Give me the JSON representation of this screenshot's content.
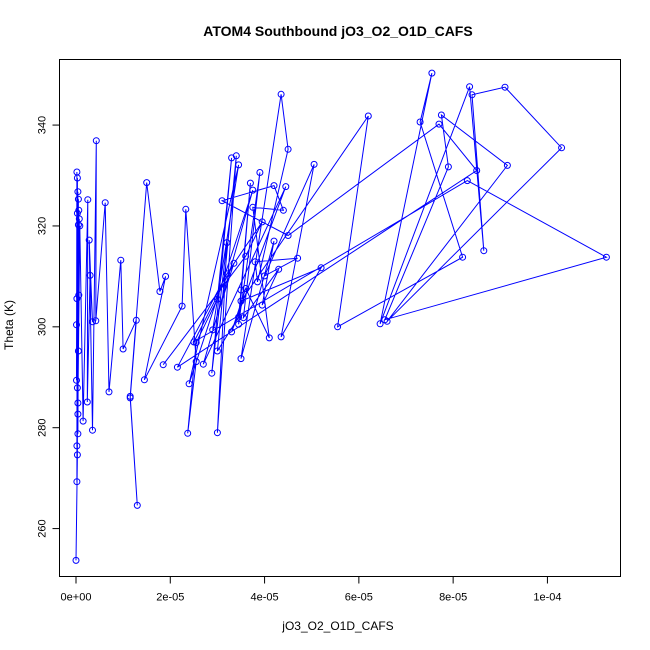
{
  "chart_data": {
    "type": "line",
    "title": "ATOM4 Southbound jO3_O2_O1D_CAFS",
    "xlabel": "jO3_O2_O1D_CAFS",
    "ylabel": "Theta (K)",
    "xlim": [
      -3.5e-06,
      0.0001155
    ],
    "ylim": [
      250.5,
      353.0
    ],
    "x_ticks": [
      0,
      2e-05,
      4e-05,
      6e-05,
      8e-05,
      0.0001
    ],
    "x_tick_labels": [
      "0e+00",
      "2e-05",
      "4e-05",
      "6e-05",
      "8e-05",
      "1e-04"
    ],
    "y_ticks": [
      260,
      280,
      300,
      320,
      340
    ],
    "y_tick_labels": [
      "260",
      "280",
      "300",
      "320",
      "340"
    ],
    "grid": false,
    "legend": false,
    "marker": "open-circle",
    "series": [
      {
        "color": "#0000ff",
        "points": [
          [
            0.0,
            253.7
          ],
          [
            3e-07,
            274.6
          ],
          [
            2e-07,
            330.7
          ],
          [
            1e-07,
            289.4
          ],
          [
            4e-07,
            326.8
          ],
          [
            2e-07,
            269.3
          ],
          [
            3e-07,
            322.5
          ],
          [
            4e-07,
            282.7
          ],
          [
            3e-07,
            329.5
          ],
          [
            2e-07,
            276.4
          ],
          [
            5e-07,
            320.2
          ],
          [
            1e-07,
            300.4
          ],
          [
            6e-07,
            323.1
          ],
          [
            4e-07,
            278.8
          ],
          [
            2e-07,
            305.6
          ],
          [
            5e-07,
            325.3
          ],
          [
            3e-07,
            287.9
          ],
          [
            7e-07,
            321.4
          ],
          [
            5e-07,
            295.2
          ],
          [
            6e-07,
            306.3
          ],
          [
            4e-07,
            284.9
          ],
          [
            8e-07,
            320.0
          ],
          [
            1.5e-06,
            281.3
          ],
          [
            2.5e-06,
            325.2
          ],
          [
            2.4e-06,
            285.1
          ],
          [
            3e-06,
            310.2
          ],
          [
            3.5e-06,
            301.0
          ],
          [
            2.8e-06,
            317.2
          ],
          [
            3.5e-06,
            279.5
          ],
          [
            4.3e-06,
            336.9
          ],
          [
            4.2e-06,
            301.2
          ],
          [
            6.2e-06,
            324.6
          ],
          [
            7e-06,
            287.1
          ],
          [
            9.5e-06,
            313.2
          ],
          [
            1e-05,
            295.6
          ],
          [
            1.28e-05,
            301.3
          ],
          [
            1.15e-05,
            285.9
          ],
          [
            1.3e-05,
            264.6
          ],
          [
            1.15e-05,
            286.2
          ],
          [
            1.5e-05,
            328.6
          ],
          [
            1.78e-05,
            307.0
          ],
          [
            1.9e-05,
            310.0
          ],
          [
            1.45e-05,
            289.5
          ],
          [
            2.25e-05,
            304.1
          ],
          [
            2.33e-05,
            323.3
          ],
          [
            2.55e-05,
            293.1
          ],
          [
            2.37e-05,
            278.9
          ],
          [
            2.55e-05,
            296.9
          ],
          [
            3e-05,
            305.5
          ],
          [
            3.3e-05,
            333.5
          ],
          [
            2.88e-05,
            290.8
          ],
          [
            3.2e-05,
            316.7
          ],
          [
            3e-05,
            279.0
          ],
          [
            3.4e-05,
            333.9
          ],
          [
            3e-05,
            295.2
          ],
          [
            3.45e-05,
            301.9
          ],
          [
            3.5e-05,
            307.3
          ],
          [
            3.7e-05,
            328.5
          ],
          [
            3.45e-05,
            300.5
          ],
          [
            3.9e-05,
            330.6
          ],
          [
            3.55e-05,
            301.8
          ],
          [
            4.3e-05,
            311.4
          ],
          [
            3.95e-05,
            304.3
          ],
          [
            4.2e-05,
            317.0
          ],
          [
            3.5e-05,
            293.7
          ],
          [
            4.35e-05,
            346.1
          ],
          [
            4.5e-05,
            335.2
          ],
          [
            3.85e-05,
            308.9
          ],
          [
            3.8e-05,
            312.9
          ],
          [
            4.7e-05,
            313.6
          ],
          [
            4e-05,
            310.1
          ],
          [
            5.05e-05,
            332.2
          ],
          [
            4.35e-05,
            298.0
          ],
          [
            5.2e-05,
            311.7
          ],
          [
            3.5e-05,
            305.1
          ],
          [
            6.2e-05,
            341.8
          ],
          [
            5.55e-05,
            300.0
          ],
          [
            8.2e-05,
            313.8
          ],
          [
            7.3e-05,
            340.6
          ],
          [
            7.55e-05,
            350.3
          ],
          [
            6.45e-05,
            300.6
          ],
          [
            8.35e-05,
            347.6
          ],
          [
            8.65e-05,
            315.1
          ],
          [
            8.4e-05,
            346.0
          ],
          [
            9.1e-05,
            347.5
          ],
          [
            0.000103,
            335.5
          ],
          [
            6.6e-05,
            301.1
          ],
          [
            9.15e-05,
            332.0
          ],
          [
            7.75e-05,
            342.0
          ],
          [
            7.9e-05,
            331.7
          ],
          [
            6.55e-05,
            301.4
          ],
          [
            0.0001125,
            313.8
          ],
          [
            8.3e-05,
            329.0
          ],
          [
            2.5e-05,
            297.0
          ],
          [
            3.35e-05,
            312.6
          ],
          [
            2.9e-05,
            299.4
          ],
          [
            3.45e-05,
            332.1
          ],
          [
            2.4e-05,
            288.7
          ],
          [
            3.75e-05,
            327.1
          ],
          [
            2.7e-05,
            292.6
          ],
          [
            4.45e-05,
            327.8
          ],
          [
            3.3e-05,
            299.0
          ],
          [
            3.6e-05,
            307.6
          ],
          [
            4.1e-05,
            297.8
          ],
          [
            3.75e-05,
            323.7
          ],
          [
            4.4e-05,
            323.1
          ],
          [
            4.2e-05,
            328.0
          ],
          [
            3.1e-05,
            325.0
          ],
          [
            4.5e-05,
            318.1
          ],
          [
            7.7e-05,
            340.2
          ],
          [
            8.5e-05,
            331.0
          ],
          [
            2.15e-05,
            292.0
          ],
          [
            3.2e-05,
            310.5
          ],
          [
            3.95e-05,
            320.8
          ],
          [
            3.6e-05,
            314.0
          ],
          [
            1.85e-05,
            292.5
          ]
        ]
      }
    ]
  }
}
